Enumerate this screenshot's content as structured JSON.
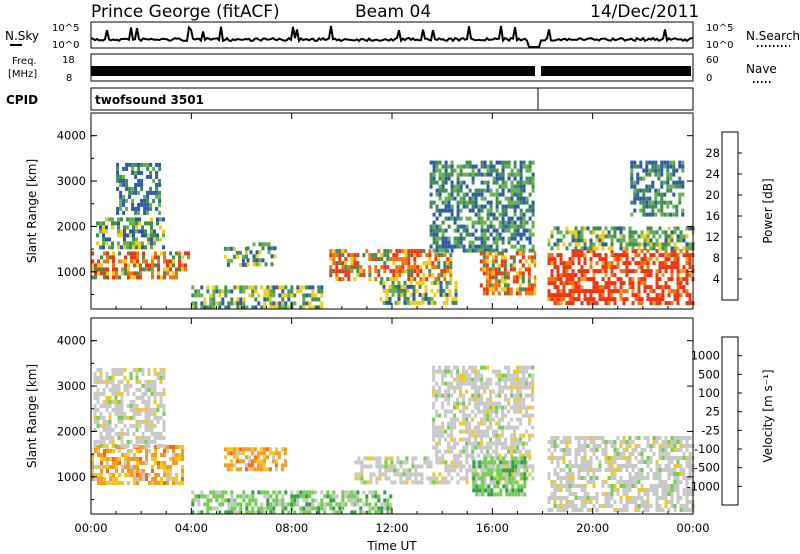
{
  "header": {
    "station": "Prince George (fitACF)",
    "beam": "Beam 04",
    "date": "14/Dec/2011"
  },
  "strip": {
    "nsky_label": "N.Sky",
    "nsky_ticks": [
      "10^5",
      "10^0"
    ],
    "nsearch_label": "N.Search",
    "nsearch_ticks": [
      "10^5",
      "10^0"
    ],
    "freq_label": "Freq.",
    "freq_unit": "[MHz]",
    "freq_ticks": [
      "18",
      "8"
    ],
    "nave_label": "Nave",
    "nave_ticks": [
      "60",
      "0"
    ],
    "cpid_label": "CPID",
    "cpid_value": "twofsound 3501"
  },
  "chart_data": [
    {
      "type": "heatmap",
      "quantity": "Power",
      "ylabel": "Slant Range [km]",
      "ylim": [
        180,
        4500
      ],
      "yticks": [
        "1000",
        "2000",
        "3000",
        "4000"
      ],
      "xlim_hours": [
        0,
        24
      ],
      "colorbar": {
        "label": "Power [dB]",
        "ticks": [
          "4",
          "8",
          "12",
          "16",
          "20",
          "24",
          "28"
        ],
        "colors": [
          "#1e1eff",
          "#2d5aa8",
          "#3f8f4f",
          "#66b14f",
          "#f3cc1b",
          "#f0a020",
          "#ef7412",
          "#ee3615"
        ]
      },
      "regions": [
        {
          "t0": 0.0,
          "t1": 3.9,
          "r0": 900,
          "r1": 1450,
          "level": "high"
        },
        {
          "t0": 0.2,
          "t1": 2.9,
          "r0": 1500,
          "r1": 2200,
          "level": "mid"
        },
        {
          "t0": 1.0,
          "t1": 2.7,
          "r0": 2300,
          "r1": 3400,
          "level": "low"
        },
        {
          "t0": 5.3,
          "t1": 6.2,
          "r0": 1150,
          "r1": 1550,
          "level": "mid"
        },
        {
          "t0": 6.2,
          "t1": 7.3,
          "r0": 1200,
          "r1": 1650,
          "level": "mid"
        },
        {
          "t0": 4.0,
          "t1": 9.2,
          "r0": 250,
          "r1": 700,
          "level": "mid"
        },
        {
          "t0": 9.5,
          "t1": 14.3,
          "r0": 850,
          "r1": 1500,
          "level": "high"
        },
        {
          "t0": 11.5,
          "t1": 14.5,
          "r0": 300,
          "r1": 800,
          "level": "mid"
        },
        {
          "t0": 13.5,
          "t1": 17.6,
          "r0": 1500,
          "r1": 3450,
          "level": "low"
        },
        {
          "t0": 15.5,
          "t1": 17.7,
          "r0": 500,
          "r1": 1450,
          "level": "high"
        },
        {
          "t0": 18.2,
          "t1": 24.0,
          "r0": 300,
          "r1": 1500,
          "level": "veryhigh"
        },
        {
          "t0": 18.2,
          "t1": 24.0,
          "r0": 1500,
          "r1": 2000,
          "level": "mid"
        },
        {
          "t0": 21.5,
          "t1": 23.6,
          "r0": 2300,
          "r1": 3450,
          "level": "low"
        }
      ],
      "gap_hours": [
        17.75,
        18.15
      ]
    },
    {
      "type": "heatmap",
      "quantity": "Velocity",
      "ylabel": "Slant Range [km]",
      "ylim": [
        180,
        4500
      ],
      "yticks": [
        "1000",
        "2000",
        "3000",
        "4000"
      ],
      "xlim_hours": [
        0,
        24
      ],
      "xticks": [
        "00:00",
        "04:00",
        "08:00",
        "12:00",
        "16:00",
        "20:00",
        "00:00"
      ],
      "xlabel": "Time UT",
      "colorbar": {
        "label": "Velocity  [m s⁻¹]",
        "ticks": [
          "1000",
          "500",
          "100",
          "25",
          "-25",
          "-100",
          "-500",
          "-1000"
        ],
        "colors": [
          "#2a3cc4",
          "#2f74c9",
          "#379b4a",
          "#6fd04e",
          "#c8c8c8",
          "#f3c71b",
          "#f59a25",
          "#f26a13",
          "#ee1a15"
        ]
      },
      "regions": [
        {
          "t0": 0.0,
          "t1": 3.7,
          "r0": 900,
          "r1": 1700,
          "level": "toward"
        },
        {
          "t0": 0.1,
          "t1": 2.9,
          "r0": 1700,
          "r1": 3400,
          "level": "zero"
        },
        {
          "t0": 5.3,
          "t1": 7.8,
          "r0": 1200,
          "r1": 1650,
          "level": "toward"
        },
        {
          "t0": 4.0,
          "t1": 12.0,
          "r0": 250,
          "r1": 700,
          "level": "away"
        },
        {
          "t0": 10.5,
          "t1": 17.6,
          "r0": 900,
          "r1": 1450,
          "level": "zero"
        },
        {
          "t0": 13.6,
          "t1": 17.6,
          "r0": 1500,
          "r1": 3450,
          "level": "zero"
        },
        {
          "t0": 15.2,
          "t1": 17.3,
          "r0": 600,
          "r1": 1450,
          "level": "away"
        },
        {
          "t0": 18.2,
          "t1": 24.0,
          "r0": 300,
          "r1": 1900,
          "level": "zero"
        }
      ],
      "gap_hours": [
        17.75,
        18.15
      ]
    }
  ]
}
